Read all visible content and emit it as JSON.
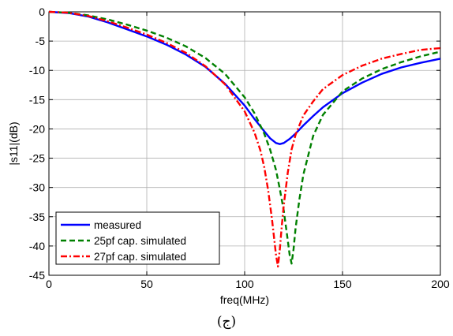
{
  "caption": "(ج)",
  "chart_data": {
    "type": "line",
    "xlabel": "freq(MHz)",
    "ylabel": "|s11|(dB)",
    "xlim": [
      0,
      200
    ],
    "ylim": [
      -45,
      0
    ],
    "xticks": [
      0,
      50,
      100,
      150,
      200
    ],
    "yticks": [
      0,
      -5,
      -10,
      -15,
      -20,
      -25,
      -30,
      -35,
      -40,
      -45
    ],
    "grid": true,
    "legend_position": "bottom-left",
    "series": [
      {
        "name": "measured",
        "color": "#0000ff",
        "style": "solid",
        "x": [
          0,
          10,
          20,
          30,
          40,
          50,
          60,
          70,
          80,
          90,
          100,
          105,
          110,
          113,
          116,
          118,
          120,
          123,
          126,
          130,
          135,
          140,
          150,
          160,
          170,
          180,
          190,
          200
        ],
        "y": [
          0,
          -0.2,
          -0.8,
          -1.8,
          -3.0,
          -4.2,
          -5.6,
          -7.3,
          -9.4,
          -12.3,
          -16.0,
          -18.3,
          -20.4,
          -21.6,
          -22.4,
          -22.6,
          -22.4,
          -21.7,
          -20.8,
          -19.4,
          -17.8,
          -16.3,
          -13.9,
          -12.1,
          -10.6,
          -9.5,
          -8.7,
          -8.0
        ]
      },
      {
        "name": "25pf cap. simulated",
        "color": "#008000",
        "style": "dashed",
        "x": [
          0,
          10,
          20,
          30,
          40,
          50,
          60,
          70,
          80,
          90,
          100,
          105,
          110,
          113,
          116,
          118,
          120,
          121,
          122,
          123,
          124,
          125,
          126,
          128,
          130,
          135,
          140,
          150,
          160,
          170,
          180,
          190,
          200
        ],
        "y": [
          0,
          -0.15,
          -0.6,
          -1.3,
          -2.2,
          -3.2,
          -4.4,
          -5.9,
          -7.9,
          -10.6,
          -14.6,
          -17.3,
          -20.8,
          -23.5,
          -27.0,
          -30.3,
          -34.0,
          -36.5,
          -39.0,
          -41.5,
          -43.0,
          -40.5,
          -37.0,
          -32.0,
          -27.8,
          -21.2,
          -17.6,
          -13.6,
          -11.4,
          -9.8,
          -8.6,
          -7.6,
          -6.8
        ]
      },
      {
        "name": "27pf cap. simulated",
        "color": "#ff0000",
        "style": "dashdot",
        "x": [
          0,
          10,
          20,
          30,
          40,
          50,
          60,
          70,
          80,
          90,
          100,
          105,
          108,
          110,
          112,
          114,
          115,
          116,
          117,
          118,
          119,
          120,
          122,
          124,
          126,
          130,
          135,
          140,
          150,
          160,
          170,
          180,
          190,
          200
        ],
        "y": [
          0,
          -0.15,
          -0.7,
          -1.6,
          -2.7,
          -3.9,
          -5.3,
          -7.0,
          -9.3,
          -12.4,
          -17.0,
          -20.6,
          -23.6,
          -26.5,
          -30.5,
          -35.5,
          -38.5,
          -41.5,
          -43.5,
          -40.5,
          -36.5,
          -33.0,
          -27.5,
          -23.5,
          -21.0,
          -17.7,
          -15.3,
          -13.2,
          -10.8,
          -9.2,
          -8.0,
          -7.2,
          -6.5,
          -6.2
        ]
      }
    ]
  }
}
